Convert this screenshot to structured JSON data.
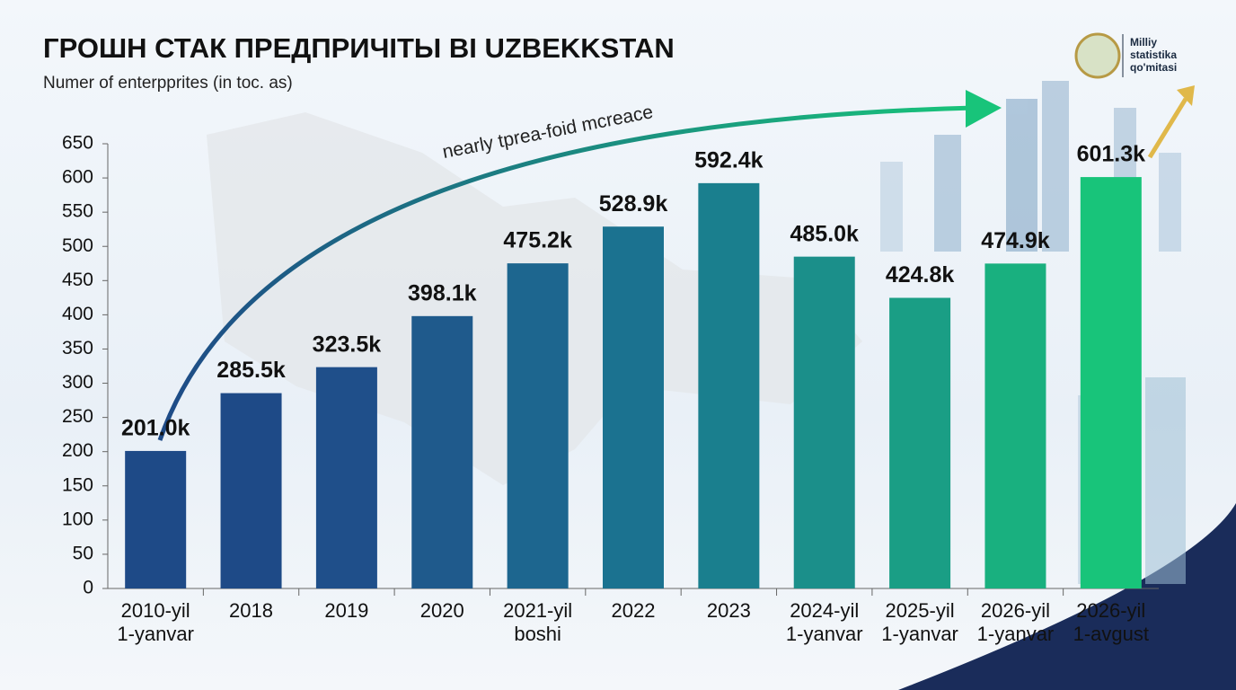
{
  "chart_data": {
    "type": "bar",
    "title": "ГРОШН СТАК ПРЕДПРИЧІТЫ ВІ UZBEKKSTAN",
    "subtitle": "Numer of enterpprites (in toc. as)",
    "annotation": "nearly tprea-foid mcreace",
    "logo_text": "Milliy\nstatistika\nqo'mitasi",
    "categories": [
      "2010-yil\n1-yanvar",
      "2018",
      "2019",
      "2020",
      "2021-yil\nboshi",
      "2022",
      "2023",
      "2024-yil\n1-yanvar",
      "2025-yil\n1-yanvar",
      "2026-yil\n1-yanvar",
      "2026-yil\n1-avgust"
    ],
    "values": [
      201.0,
      285.5,
      323.5,
      398.1,
      475.2,
      528.9,
      592.4,
      485.0,
      424.8,
      474.9,
      601.3
    ],
    "value_labels": [
      "201.0k",
      "285.5k",
      "323.5k",
      "398.1k",
      "475.2k",
      "528.9k",
      "592.4k",
      "485.0k",
      "424.8k",
      "474.9k",
      "601.3k"
    ],
    "colors": [
      "#1e4a87",
      "#1e4a87",
      "#1f4f8a",
      "#1f5a8c",
      "#1d668f",
      "#1b7290",
      "#1a7f8e",
      "#1b8f8a",
      "#1a9e85",
      "#19b07f",
      "#18c47a"
    ],
    "ylim": [
      0,
      650
    ],
    "yticks": [
      0,
      50,
      100,
      150,
      200,
      250,
      300,
      350,
      400,
      450,
      500,
      550,
      600,
      650
    ]
  }
}
